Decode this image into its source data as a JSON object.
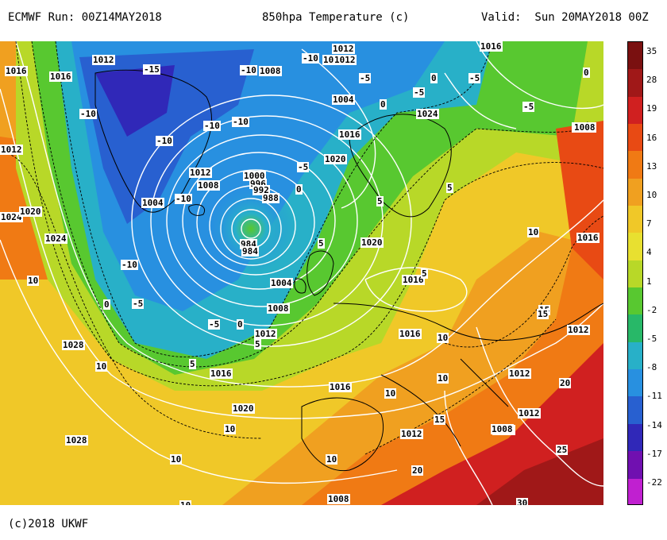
{
  "header": {
    "run": "ECMWF Run: 00Z14MAY2018",
    "title": "850hpa Temperature (c)",
    "valid": "Valid:  Sun 20MAY2018 00Z"
  },
  "footer": {
    "copyright": "(c)2018 UKWF"
  },
  "colorbar": {
    "labels": [
      "35",
      "28",
      "19",
      "16",
      "13",
      "10",
      "7",
      "4",
      "1",
      "-2",
      "-5",
      "-8",
      "-11",
      "-14",
      "-17",
      "-22"
    ],
    "colors": [
      "#7a1010",
      "#a01818",
      "#d02020",
      "#e84a14",
      "#f07a14",
      "#f0a020",
      "#f0c828",
      "#e8e030",
      "#b8d828",
      "#58c830",
      "#28b868",
      "#28b0c8",
      "#2890e0",
      "#2860d0",
      "#3028b8",
      "#7010b0",
      "#c020d0"
    ]
  },
  "map": {
    "pressure_labels": [
      "1012",
      "1012",
      "1008",
      "1016",
      "1016",
      "1016",
      "1012",
      "1012",
      "1008",
      "1004",
      "1008",
      "1000",
      "996",
      "992",
      "988",
      "984",
      "984",
      "1004",
      "1008",
      "1012",
      "1016",
      "1020",
      "1024",
      "1028",
      "1020",
      "1016",
      "1016",
      "1016",
      "1012",
      "1012",
      "1008",
      "1004",
      "1008",
      "1012",
      "1016",
      "1020",
      "1024",
      "1024",
      "1020",
      "1016",
      "1012",
      "1012",
      "1028",
      "1012",
      "1008",
      "1008"
    ],
    "temp_labels": [
      "-15",
      "-10",
      "-10",
      "-10",
      "-10",
      "-10",
      "-10",
      "-10",
      "-10",
      "-5",
      "-5",
      "-5",
      "-5",
      "-5",
      "-5",
      "-5",
      "0",
      "0",
      "0",
      "0",
      "0",
      "0",
      "5",
      "5",
      "5",
      "5",
      "5",
      "5",
      "10",
      "10",
      "10",
      "10",
      "10",
      "10",
      "10",
      "10",
      "10",
      "10",
      "15",
      "15",
      "15",
      "20",
      "20",
      "25",
      "30"
    ]
  }
}
